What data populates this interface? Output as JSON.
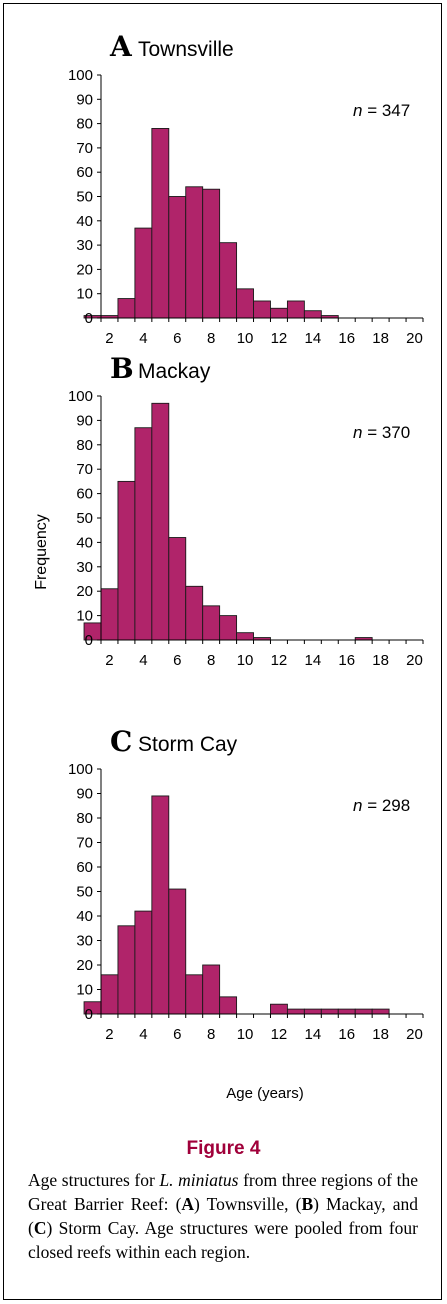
{
  "chart_data": [
    {
      "type": "bar",
      "panel_letter": "A",
      "title": "Townsville",
      "n_label": "n",
      "n_value": "= 347",
      "x": [
        1,
        2,
        3,
        4,
        5,
        6,
        7,
        8,
        9,
        10,
        11,
        12,
        13,
        14,
        15,
        16,
        17,
        18,
        19,
        20
      ],
      "values": [
        1,
        1,
        8,
        37,
        78,
        50,
        54,
        53,
        31,
        12,
        7,
        4,
        7,
        3,
        1,
        0,
        0,
        0,
        0,
        0
      ],
      "xticks": [
        2,
        4,
        6,
        8,
        10,
        12,
        14,
        16,
        18,
        20
      ],
      "yticks": [
        0,
        10,
        20,
        30,
        40,
        50,
        60,
        70,
        80,
        90,
        100
      ],
      "ylim": [
        0,
        100
      ],
      "bar_color": "#b0246a"
    },
    {
      "type": "bar",
      "panel_letter": "B",
      "title": "Mackay",
      "n_label": "n",
      "n_value": "= 370",
      "x": [
        1,
        2,
        3,
        4,
        5,
        6,
        7,
        8,
        9,
        10,
        11,
        12,
        13,
        14,
        15,
        16,
        17,
        18,
        19,
        20
      ],
      "values": [
        7,
        21,
        65,
        87,
        97,
        42,
        22,
        14,
        10,
        3,
        1,
        0,
        0,
        0,
        0,
        0,
        1,
        0,
        0,
        0
      ],
      "xticks": [
        2,
        4,
        6,
        8,
        10,
        12,
        14,
        16,
        18,
        20
      ],
      "yticks": [
        0,
        10,
        20,
        30,
        40,
        50,
        60,
        70,
        80,
        90,
        100
      ],
      "ylim": [
        0,
        100
      ],
      "bar_color": "#b0246a"
    },
    {
      "type": "bar",
      "panel_letter": "C",
      "title": "Storm Cay",
      "n_label": "n",
      "n_value": "= 298",
      "x": [
        1,
        2,
        3,
        4,
        5,
        6,
        7,
        8,
        9,
        10,
        11,
        12,
        13,
        14,
        15,
        16,
        17,
        18,
        19,
        20
      ],
      "values": [
        5,
        16,
        36,
        42,
        89,
        51,
        16,
        20,
        7,
        0,
        0,
        4,
        2,
        2,
        2,
        2,
        2,
        2,
        0,
        0
      ],
      "xticks": [
        2,
        4,
        6,
        8,
        10,
        12,
        14,
        16,
        18,
        20
      ],
      "yticks": [
        0,
        10,
        20,
        30,
        40,
        50,
        60,
        70,
        80,
        90,
        100
      ],
      "ylim": [
        0,
        100
      ],
      "bar_color": "#b0246a"
    }
  ],
  "ylabel": "Frequency",
  "xlabel": "Age (years)",
  "figure": {
    "title": "Figure 4",
    "caption_1": "Age structures for ",
    "caption_species": "L. miniatus",
    "caption_2": " from three regions of the Great Barrier Reef: (",
    "caption_a": "A",
    "caption_3": ") Townsville, (",
    "caption_b": "B",
    "caption_4": ") Mackay, and (",
    "caption_c": "C",
    "caption_5": ") Storm Cay. Age structures were pooled from four closed reefs within each region."
  }
}
